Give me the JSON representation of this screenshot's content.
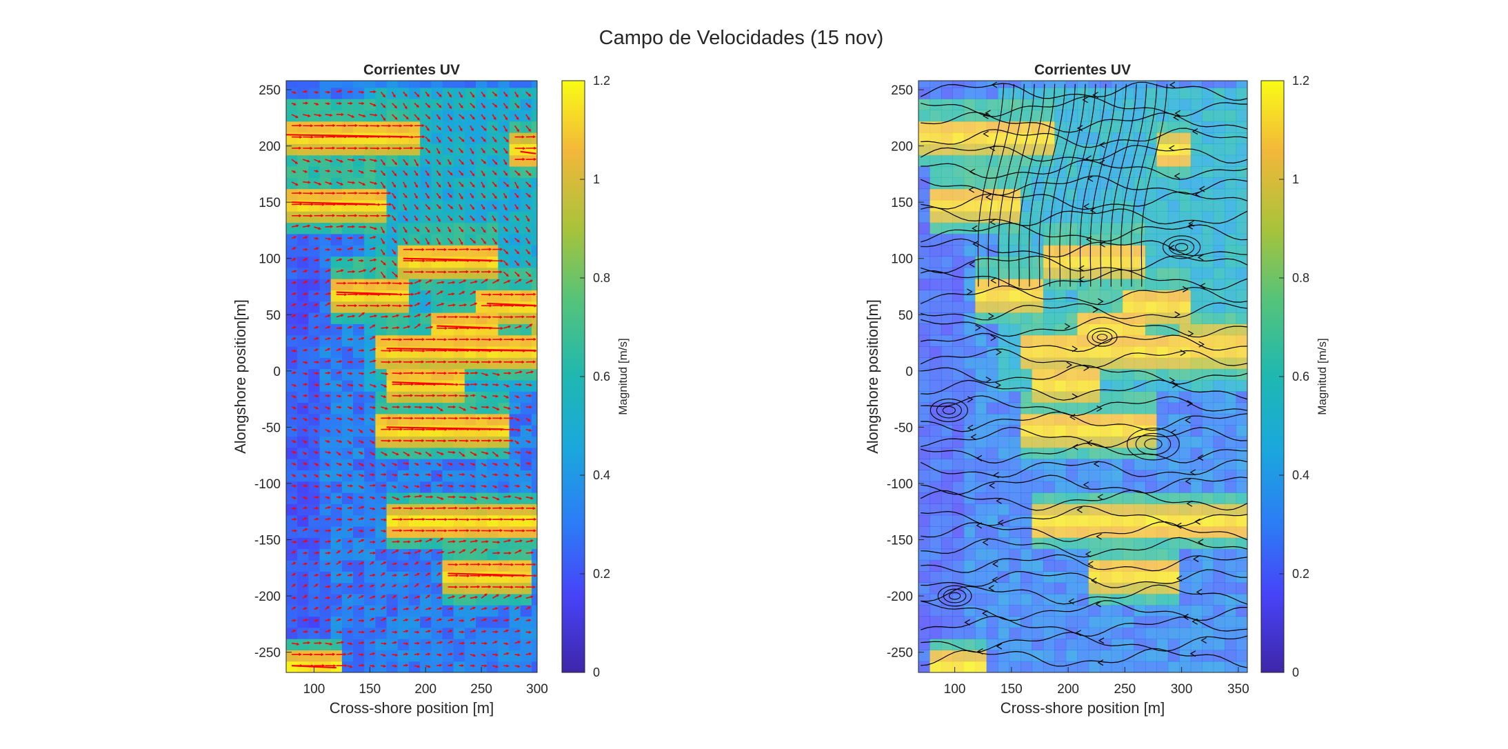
{
  "figure": {
    "title": "Campo de Velocidades (15 nov)"
  },
  "chart_data": [
    {
      "type": "heatmap",
      "overlay": "quiver",
      "title": "Corrientes UV",
      "xlabel": "Cross-shore position [m]",
      "ylabel": "Alongshore position[m]",
      "xlim": [
        75,
        300
      ],
      "ylim": [
        -268,
        258
      ],
      "xticks": [
        100,
        150,
        200,
        250,
        300
      ],
      "yticks": [
        250,
        200,
        150,
        100,
        50,
        0,
        -50,
        -100,
        -150,
        -200,
        -250
      ],
      "arrow_color": "#ff0000",
      "colorbar": {
        "label": "Magnitud [m/s]",
        "range": [
          0,
          1.2
        ],
        "ticks": [
          0,
          0.2,
          0.4,
          0.6,
          0.8,
          1,
          1.2
        ]
      }
    },
    {
      "type": "heatmap",
      "overlay": "streamlines",
      "title": "Corrientes UV",
      "xlabel": "Cross-shore position [m]",
      "ylabel": "Alongshore position[m]",
      "xlim": [
        68,
        358
      ],
      "ylim": [
        -268,
        258
      ],
      "xticks": [
        100,
        150,
        200,
        250,
        300,
        350
      ],
      "yticks": [
        250,
        200,
        150,
        100,
        50,
        0,
        -50,
        -100,
        -150,
        -200,
        -250
      ],
      "line_color": "#000000",
      "colorbar": {
        "label": "Magnitud [m/s]",
        "range": [
          0,
          1.2
        ],
        "ticks": [
          0,
          0.2,
          0.4,
          0.6,
          0.8,
          1,
          1.2
        ]
      }
    }
  ]
}
